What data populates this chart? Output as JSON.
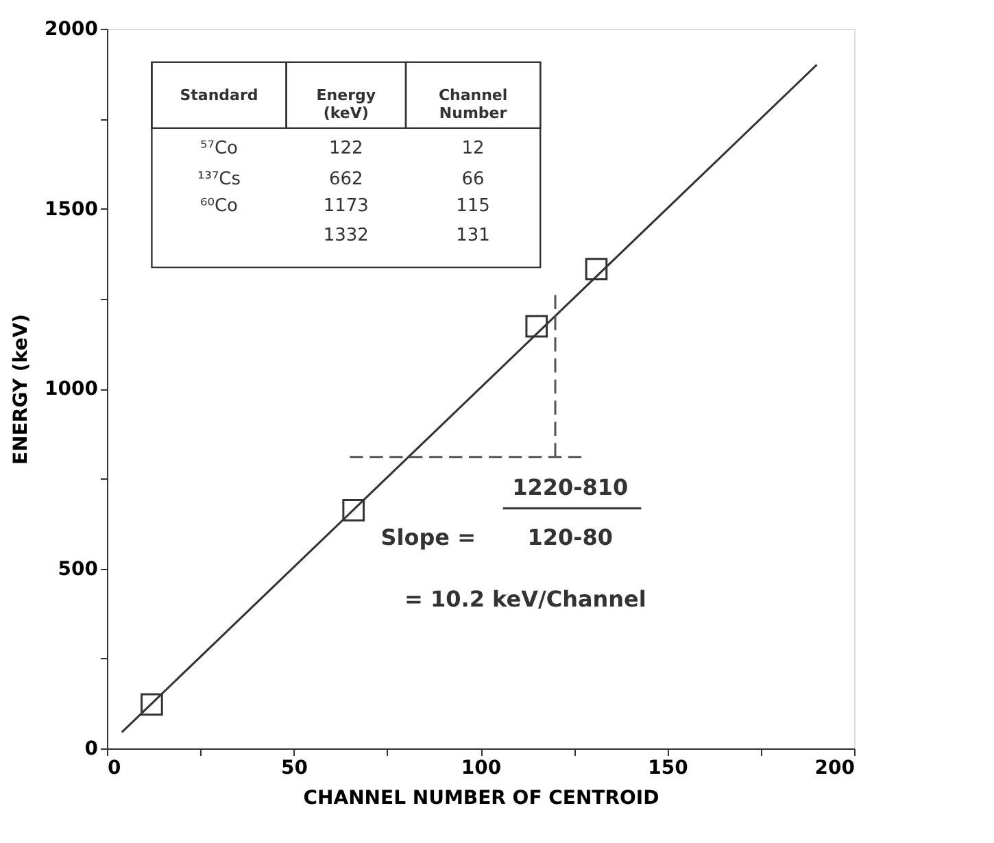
{
  "chart_data": {
    "type": "scatter",
    "xlabel": "CHANNEL NUMBER OF CENTROID",
    "ylabel": "ENERGY (keV)",
    "xlim": [
      0,
      200
    ],
    "ylim": [
      0,
      2000
    ],
    "xticks": [
      0,
      {
        "value": 25,
        "label": null
      },
      50,
      {
        "value": 75,
        "label": null
      },
      100,
      {
        "value": 125,
        "label": null
      },
      150,
      {
        "value": 175,
        "label": null
      },
      200
    ],
    "yticks": [
      0,
      {
        "value": 250,
        "label": null
      },
      500,
      {
        "value": 750,
        "label": null
      },
      1000,
      {
        "value": 1250,
        "label": null
      },
      1500,
      {
        "value": 1750,
        "label": null
      },
      2000
    ],
    "grid": false,
    "series": [
      {
        "marker": "square",
        "color": "#333333",
        "x": [
          12,
          66,
          115,
          131
        ],
        "values": [
          122,
          662,
          1173,
          1332
        ]
      },
      {
        "type": "line",
        "line_style": "solid",
        "color": "#333333",
        "x": [
          4,
          190
        ],
        "values": [
          45,
          1900
        ]
      },
      {
        "type": "line",
        "line_style": "dashed",
        "color": "#555555",
        "x": [
          65,
          127
        ],
        "values": [
          810,
          810
        ]
      },
      {
        "type": "line",
        "line_style": "dashed",
        "color": "#555555",
        "x": [
          120,
          120
        ],
        "values": [
          810,
          1260
        ]
      }
    ],
    "annotations": [
      "Standard",
      "Energy (keV)",
      "Channel Number",
      "⁵⁷Co",
      "122",
      "12",
      "¹³⁷Cs",
      "662",
      "66",
      "⁶⁰Co",
      "1173",
      "115",
      "1332",
      "131",
      "1220-810",
      "Slope =",
      "120-80",
      "= 10.2 keV/Channel"
    ]
  }
}
